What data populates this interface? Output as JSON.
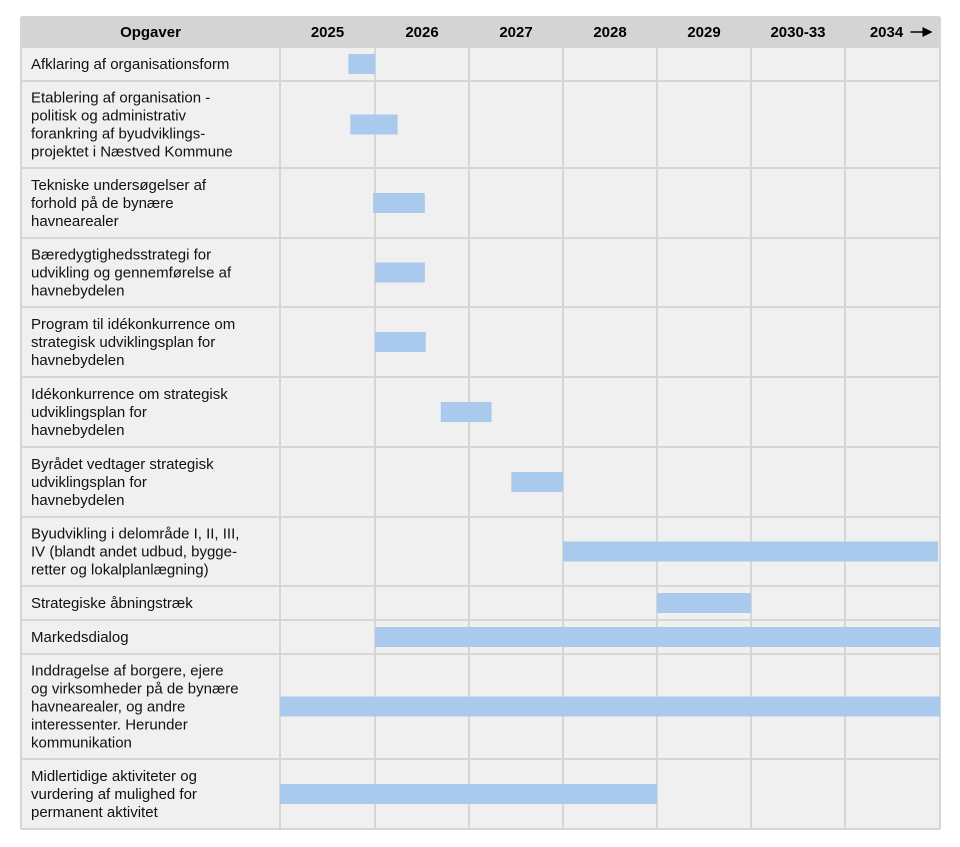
{
  "chart_data": {
    "type": "gantt",
    "header": {
      "task_column": "Opgaver",
      "periods": [
        "2025",
        "2026",
        "2027",
        "2028",
        "2029",
        "2030-33",
        "2034"
      ],
      "last_period_arrow": true
    },
    "bar_color": "#a9caec",
    "header_color": "#d4d4d4",
    "cell_color": "#f0f0f0",
    "tasks": [
      {
        "lines": [
          "Afklaring af organisationsform"
        ],
        "start": 0.72,
        "end": 1.0
      },
      {
        "lines": [
          "Etablering af organisation -",
          "politisk og administrativ",
          "forankring af byudviklings-",
          "projektet i Næstved Kommune"
        ],
        "start": 0.74,
        "end": 1.24
      },
      {
        "lines": [
          "Tekniske undersøgelser af",
          "forhold på de bynære",
          "havnearealer"
        ],
        "start": 0.98,
        "end": 1.53
      },
      {
        "lines": [
          "Bæredygtighedsstrategi for",
          "udvikling og gennemførelse af",
          "havnebydelen"
        ],
        "start": 1.0,
        "end": 1.53
      },
      {
        "lines": [
          "Program til idékonkurrence om",
          "strategisk udviklingsplan for",
          "havnebydelen"
        ],
        "start": 1.0,
        "end": 1.54
      },
      {
        "lines": [
          "Idékonkurrence om strategisk",
          "udviklingsplan for",
          "havnebydelen"
        ],
        "start": 1.7,
        "end": 2.24
      },
      {
        "lines": [
          "Byrådet vedtager strategisk",
          "udviklingsplan for",
          "havnebydelen"
        ],
        "start": 2.45,
        "end": 3.0
      },
      {
        "lines": [
          "Byudvikling i delområde I, II, III,",
          "IV (blandt andet udbud, bygge-",
          "retter og lokalplanlægning)"
        ],
        "start": 3.0,
        "end": 6.98
      },
      {
        "lines": [
          "Strategiske åbningstræk"
        ],
        "start": 4.0,
        "end": 5.0
      },
      {
        "lines": [
          "Markedsdialog"
        ],
        "start": 1.0,
        "end": 7.0
      },
      {
        "lines": [
          "Inddragelse af borgere, ejere",
          "og virksomheder på de bynære",
          "havnearealer, og andre",
          "interessenter. Herunder",
          "kommunikation"
        ],
        "start": 0.0,
        "end": 7.0
      },
      {
        "lines": [
          "Midlertidige aktiviteter og",
          "vurdering af mulighed for",
          "permanent aktivitet"
        ],
        "start": 0.0,
        "end": 4.0
      }
    ]
  }
}
